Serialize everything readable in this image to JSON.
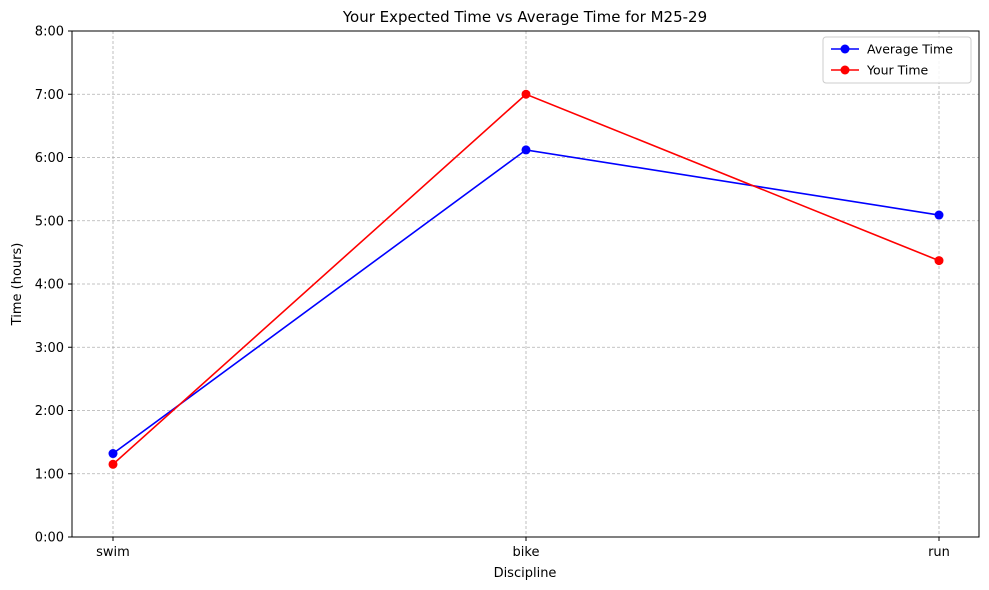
{
  "chart_data": {
    "type": "line",
    "title": "Your Expected Time vs Average Time for M25-29",
    "xlabel": "Discipline",
    "ylabel": "Time (hours)",
    "categories": [
      "swim",
      "bike",
      "run"
    ],
    "ylim": [
      0,
      8
    ],
    "yticks": [
      0,
      1,
      2,
      3,
      4,
      5,
      6,
      7,
      8
    ],
    "ytick_labels": [
      "0:00",
      "1:00",
      "2:00",
      "3:00",
      "4:00",
      "5:00",
      "6:00",
      "7:00",
      "8:00"
    ],
    "grid": true,
    "legend_position": "top-right",
    "series": [
      {
        "name": "Average Time",
        "color": "#0000ff",
        "values": [
          1.32,
          6.12,
          5.09
        ]
      },
      {
        "name": "Your Time",
        "color": "#ff0000",
        "values": [
          1.15,
          7.0,
          4.37
        ]
      }
    ]
  }
}
